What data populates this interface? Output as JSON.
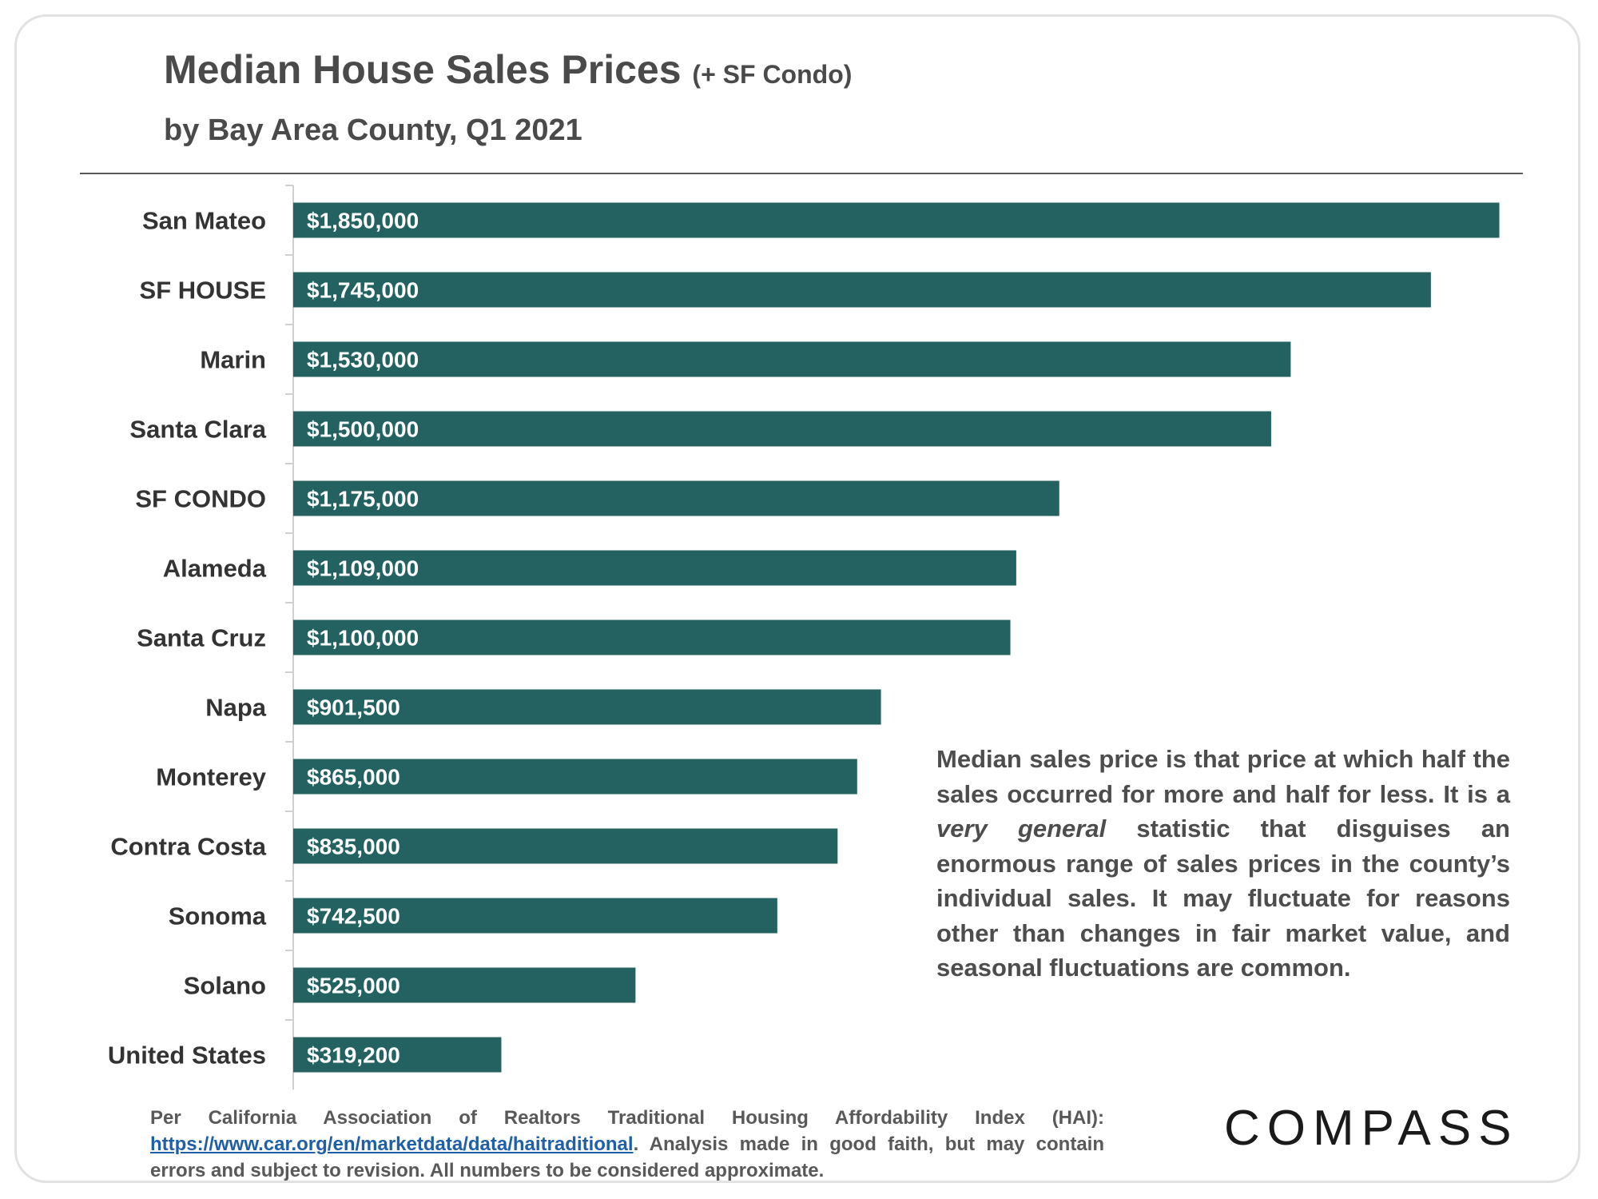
{
  "header": {
    "title": "Median House Sales Prices",
    "title_suffix": "(+ SF Condo)",
    "subtitle": "by Bay Area County, Q1 2021"
  },
  "colors": {
    "bar": "#236260",
    "title": "#4a4a4a",
    "link": "#1f5fa8"
  },
  "chart_data": {
    "type": "bar",
    "orientation": "horizontal",
    "title": "Median House Sales Prices (+ SF Condo)",
    "subtitle": "by Bay Area County, Q1 2021",
    "categories": [
      "San Mateo",
      "SF HOUSE",
      "Marin",
      "Santa Clara",
      "SF CONDO",
      "Alameda",
      "Santa Cruz",
      "Napa",
      "Monterey",
      "Contra Costa",
      "Sonoma",
      "Solano",
      "United States"
    ],
    "values": [
      1850000,
      1745000,
      1530000,
      1500000,
      1175000,
      1109000,
      1100000,
      901500,
      865000,
      835000,
      742500,
      525000,
      319200
    ],
    "data_labels": [
      "$1,850,000",
      "$1,745,000",
      "$1,530,000",
      "$1,500,000",
      "$1,175,000",
      "$1,109,000",
      "$1,100,000",
      "$901,500",
      "$865,000",
      "$835,000",
      "$742,500",
      "$525,000",
      "$319,200"
    ],
    "xlim": [
      0,
      1880000
    ],
    "grid": false,
    "legend": "none"
  },
  "note": {
    "before": "Median sales price is that price at which half the sales occurred for more and half for less. It is a",
    "emphasis": "very general",
    "after": "statistic that disguises an enormous range of sales prices in the county’s individual sales. It may fluctuate for reasons other than changes in fair market value, and seasonal fluctuations are common."
  },
  "source": {
    "before": "Per California Association of Realtors Traditional Housing Affordability Index (HAI):",
    "link": "https://www.car.org/en/marketdata/data/haitraditional",
    "after": ". Analysis made in good faith, but may contain errors and subject to revision. All numbers to be considered approximate."
  },
  "logo": {
    "text": "COMPASS"
  }
}
